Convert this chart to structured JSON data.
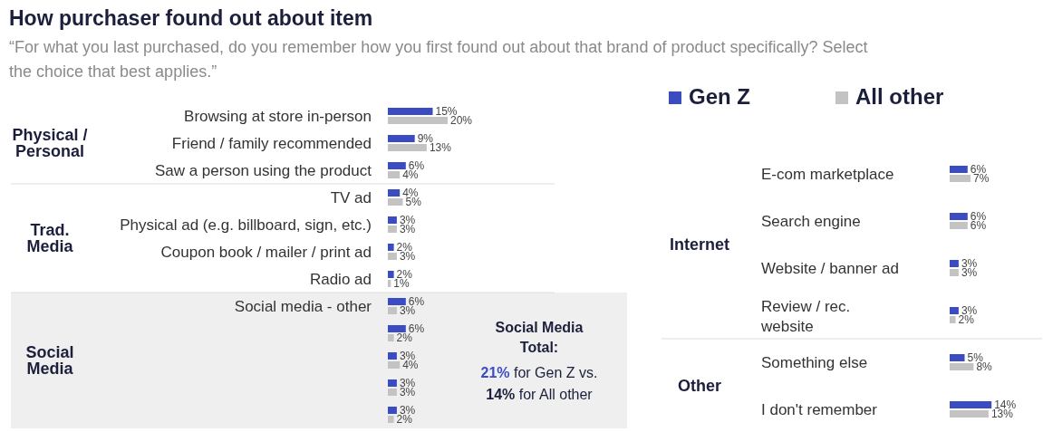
{
  "chart_data": [
    {
      "type": "bar",
      "orientation": "horizontal",
      "title": "How purchaser found out about item",
      "subtitle": "“For what you last purchased, do you remember how you first found out about that brand of product specifically?  Select the choice that best applies.”",
      "categories": [
        "Browsing at store in-person",
        "Friend / family recommended",
        "Saw a person using the product",
        "TV ad",
        "Physical ad (e.g. billboard, sign, etc.)",
        "Coupon book / mailer / print ad",
        "Radio ad",
        "Social media - other",
        null,
        null,
        null,
        null
      ],
      "series": [
        {
          "color": "#3b4bc2",
          "values": [
            15,
            9,
            6,
            4,
            3,
            2,
            2,
            6,
            6,
            3,
            3,
            3
          ],
          "value_labels": [
            "15%",
            "9%",
            "6%",
            "4%",
            "3%",
            "2%",
            "2%",
            "6%",
            "6%",
            "3%",
            "3%",
            "3%"
          ]
        },
        {
          "color": "#c3c3c3",
          "values": [
            20,
            13,
            4,
            5,
            3,
            3,
            1,
            3,
            2,
            4,
            3,
            2
          ],
          "value_labels": [
            "20%",
            "13%",
            "4%",
            "5%",
            "3%",
            "3%",
            "1%",
            "3%",
            "2%",
            "4%",
            "3%",
            "2%"
          ]
        }
      ],
      "annotations": [
        "Physical / Personal",
        "Trad. Media",
        "Social Media",
        "Social Media Total:",
        "21% for Gen Z vs.",
        "14% for All other"
      ]
    },
    {
      "type": "bar",
      "orientation": "horizontal",
      "legend": "top",
      "categories": [
        "E-com marketplace",
        "Search engine",
        "Website / banner ad",
        "Review / rec. website",
        "Something else",
        "I don't remember"
      ],
      "series": [
        {
          "name": "Gen Z",
          "color": "#3b4bc2",
          "values": [
            6,
            6,
            3,
            3,
            5,
            14
          ],
          "value_labels": [
            "6%",
            "6%",
            "3%",
            "3%",
            "5%",
            "14%"
          ]
        },
        {
          "name": "All other",
          "color": "#c3c3c3",
          "values": [
            7,
            6,
            3,
            2,
            8,
            13
          ],
          "value_labels": [
            "7%",
            "6%",
            "3%",
            "2%",
            "8%",
            "13%"
          ]
        }
      ],
      "annotations": [
        "Internet",
        "Other"
      ]
    }
  ]
}
